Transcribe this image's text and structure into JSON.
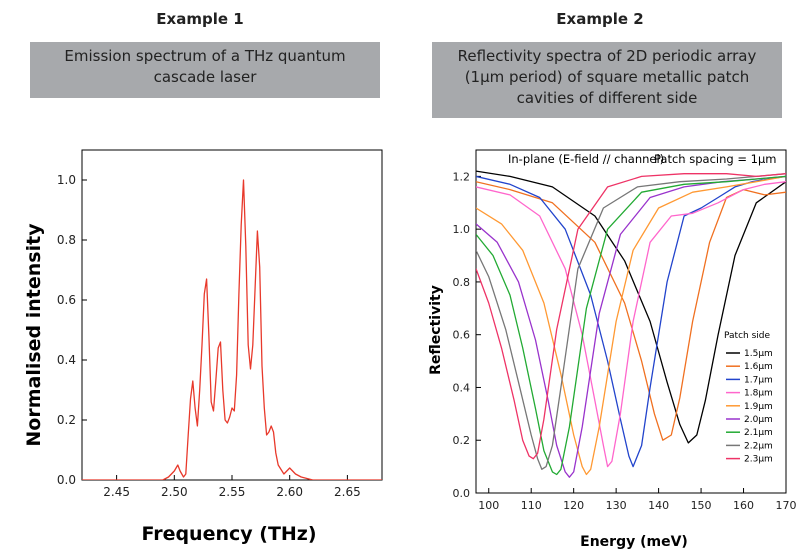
{
  "panels": [
    {
      "heading": "Example 1",
      "caption": "Emission spectrum of a THz quantum cascade laser"
    },
    {
      "heading": "Example 2",
      "caption": "Reflectivity spectra of 2D periodic array (1μm period) of square metallic patch cavities of different side"
    }
  ],
  "chart_data": [
    {
      "type": "line",
      "title": "",
      "xlabel": "Frequency  (THz)",
      "ylabel": "Normalised intensity",
      "xlim": [
        2.42,
        2.68
      ],
      "ylim": [
        0,
        1.1
      ],
      "xticks": [
        2.45,
        2.5,
        2.55,
        2.6,
        2.65
      ],
      "yticks": [
        0.0,
        0.2,
        0.4,
        0.6,
        0.8,
        1.0
      ],
      "tick_decimals": {
        "x": 2,
        "y": 1
      },
      "grid": false,
      "legend": "none",
      "series": [
        {
          "color": "#e8392b",
          "x": [
            2.42,
            2.47,
            2.49,
            2.495,
            2.5,
            2.503,
            2.505,
            2.508,
            2.51,
            2.512,
            2.514,
            2.516,
            2.518,
            2.52,
            2.522,
            2.524,
            2.526,
            2.528,
            2.53,
            2.532,
            2.534,
            2.536,
            2.538,
            2.54,
            2.542,
            2.544,
            2.546,
            2.548,
            2.55,
            2.552,
            2.554,
            2.556,
            2.558,
            2.56,
            2.562,
            2.564,
            2.566,
            2.568,
            2.57,
            2.572,
            2.574,
            2.576,
            2.578,
            2.58,
            2.582,
            2.584,
            2.586,
            2.588,
            2.59,
            2.595,
            2.6,
            2.605,
            2.61,
            2.62,
            2.68
          ],
          "y": [
            0.0,
            0.0,
            0.0,
            0.01,
            0.03,
            0.05,
            0.03,
            0.01,
            0.02,
            0.15,
            0.27,
            0.33,
            0.24,
            0.18,
            0.3,
            0.45,
            0.62,
            0.67,
            0.48,
            0.26,
            0.23,
            0.33,
            0.44,
            0.46,
            0.3,
            0.2,
            0.19,
            0.21,
            0.24,
            0.23,
            0.35,
            0.62,
            0.85,
            1.0,
            0.78,
            0.45,
            0.37,
            0.45,
            0.64,
            0.83,
            0.71,
            0.38,
            0.24,
            0.15,
            0.16,
            0.18,
            0.16,
            0.09,
            0.05,
            0.02,
            0.04,
            0.02,
            0.01,
            0.0,
            0.0
          ]
        }
      ]
    },
    {
      "type": "line",
      "title": "",
      "xlabel": "Energy (meV)",
      "ylabel": "Reflectivity",
      "xlim": [
        97,
        170
      ],
      "ylim": [
        0,
        1.3
      ],
      "xticks": [
        100,
        110,
        120,
        130,
        140,
        150,
        160,
        170
      ],
      "yticks": [
        0.0,
        0.2,
        0.4,
        0.6,
        0.8,
        1.0,
        1.2
      ],
      "tick_decimals": {
        "x": 0,
        "y": 1
      },
      "grid": false,
      "legend": "bottom-right",
      "annotations": [
        "In-plane (E-field // channel)",
        "Patch spacing = 1μm"
      ],
      "legend_title": "Patch side",
      "series": [
        {
          "name": "1.5μm",
          "color": "#000000",
          "x": [
            97,
            105,
            115,
            125,
            132,
            138,
            142,
            145,
            147,
            149,
            151,
            154,
            158,
            163,
            170
          ],
          "y": [
            1.22,
            1.2,
            1.16,
            1.05,
            0.88,
            0.65,
            0.42,
            0.26,
            0.19,
            0.22,
            0.35,
            0.6,
            0.9,
            1.1,
            1.18
          ]
        },
        {
          "name": "1.6μm",
          "color": "#f07020",
          "x": [
            97,
            105,
            115,
            125,
            132,
            136,
            139,
            141,
            143,
            145,
            148,
            152,
            156,
            160,
            165,
            170
          ],
          "y": [
            1.18,
            1.15,
            1.1,
            0.95,
            0.72,
            0.5,
            0.3,
            0.2,
            0.22,
            0.36,
            0.65,
            0.95,
            1.12,
            1.15,
            1.13,
            1.14
          ]
        },
        {
          "name": "1.7μm",
          "color": "#2244cc",
          "x": [
            97,
            105,
            112,
            118,
            124,
            128,
            131,
            133,
            134,
            136,
            138,
            142,
            146,
            150,
            154,
            158,
            162,
            166,
            170
          ],
          "y": [
            1.2,
            1.17,
            1.12,
            1.0,
            0.75,
            0.5,
            0.28,
            0.14,
            0.1,
            0.18,
            0.4,
            0.8,
            1.05,
            1.08,
            1.12,
            1.16,
            1.18,
            1.19,
            1.2
          ]
        },
        {
          "name": "1.8μm",
          "color": "#ff66cc",
          "x": [
            97,
            105,
            112,
            118,
            122,
            125,
            127,
            128,
            129,
            131,
            134,
            138,
            143,
            148,
            154,
            160,
            165,
            170
          ],
          "y": [
            1.16,
            1.13,
            1.05,
            0.85,
            0.6,
            0.35,
            0.18,
            0.1,
            0.12,
            0.3,
            0.65,
            0.95,
            1.05,
            1.06,
            1.1,
            1.15,
            1.17,
            1.18
          ]
        },
        {
          "name": "1.9μm",
          "color": "#ff9933",
          "x": [
            97,
            103,
            108,
            113,
            117,
            120,
            122,
            123,
            124,
            126,
            130,
            134,
            140,
            148,
            156,
            163,
            170
          ],
          "y": [
            1.08,
            1.02,
            0.92,
            0.72,
            0.45,
            0.22,
            0.1,
            0.07,
            0.09,
            0.25,
            0.65,
            0.92,
            1.08,
            1.14,
            1.16,
            1.18,
            1.2
          ]
        },
        {
          "name": "2.0μm",
          "color": "#9933cc",
          "x": [
            97,
            102,
            107,
            111,
            114,
            116,
            118,
            119,
            120,
            122,
            126,
            131,
            138,
            146,
            155,
            163,
            170
          ],
          "y": [
            1.02,
            0.95,
            0.8,
            0.58,
            0.35,
            0.18,
            0.08,
            0.06,
            0.08,
            0.25,
            0.68,
            0.98,
            1.12,
            1.16,
            1.18,
            1.19,
            1.2
          ]
        },
        {
          "name": "2.1μm",
          "color": "#22aa33",
          "x": [
            97,
            101,
            105,
            108,
            111,
            113,
            115,
            116,
            117,
            119,
            123,
            128,
            136,
            146,
            156,
            163,
            170
          ],
          "y": [
            0.98,
            0.9,
            0.75,
            0.55,
            0.32,
            0.16,
            0.08,
            0.07,
            0.09,
            0.25,
            0.7,
            1.0,
            1.14,
            1.17,
            1.18,
            1.19,
            1.2
          ]
        },
        {
          "name": "2.2μm",
          "color": "#777777",
          "x": [
            97,
            100,
            104,
            107,
            110,
            111.5,
            112.5,
            113.5,
            115,
            117,
            121,
            127,
            135,
            145,
            156,
            163,
            170
          ],
          "y": [
            0.92,
            0.82,
            0.62,
            0.42,
            0.22,
            0.13,
            0.09,
            0.1,
            0.18,
            0.4,
            0.85,
            1.08,
            1.16,
            1.18,
            1.19,
            1.2,
            1.21
          ]
        },
        {
          "name": "2.3μm",
          "color": "#ee3366",
          "x": [
            97,
            100,
            103,
            106,
            108,
            109.5,
            110.5,
            111.5,
            113,
            116,
            121,
            128,
            136,
            146,
            156,
            163,
            170
          ],
          "y": [
            0.85,
            0.72,
            0.55,
            0.35,
            0.2,
            0.14,
            0.13,
            0.15,
            0.28,
            0.62,
            1.0,
            1.16,
            1.2,
            1.21,
            1.21,
            1.2,
            1.21
          ]
        }
      ]
    }
  ]
}
